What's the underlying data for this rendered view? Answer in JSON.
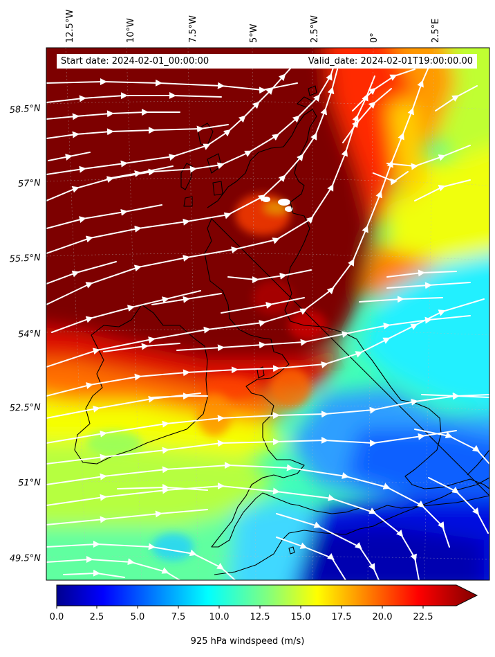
{
  "header": {
    "start_date": "Start date: 2024-02-01_00:00:00",
    "valid_date": "Valid_date: 2024-02-01T19:00:00.00"
  },
  "map": {
    "longitude_labels": [
      "12.5°W",
      "10°W",
      "7.5°W",
      "5°W",
      "2.5°W",
      "0°",
      "2.5°E"
    ],
    "latitude_labels": [
      "58.5°N",
      "57°N",
      "55.5°N",
      "54°N",
      "52.5°N",
      "51°N",
      "49.5°N"
    ],
    "field": "925 hPa windspeed",
    "overlay": "streamlines",
    "streamline_color": "#ffffff",
    "coastline_color": "#000000"
  },
  "colorbar": {
    "label": "925 hPa windspeed (m/s)",
    "ticks": [
      "0.0",
      "2.5",
      "5.0",
      "7.5",
      "10.0",
      "12.5",
      "15.0",
      "17.5",
      "20.0",
      "22.5"
    ],
    "min": 0,
    "max": 25,
    "extend": "max",
    "colormap": "jet"
  }
}
